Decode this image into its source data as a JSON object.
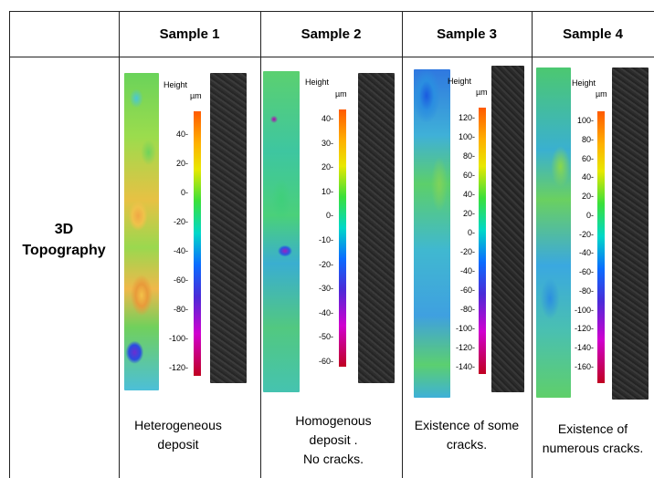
{
  "header": {
    "samples": [
      "Sample 1",
      "Sample 2",
      "Sample 3",
      "Sample 4"
    ]
  },
  "row": {
    "label_line1": "3D",
    "label_line2": "Topography"
  },
  "colorbars": [
    {
      "height_label": "Height",
      "unit": "µm",
      "ticks": [
        "40",
        "20",
        "0",
        "-20",
        "-40",
        "-60",
        "-80",
        "-100",
        "-120"
      ]
    },
    {
      "height_label": "Height",
      "unit": "µm",
      "ticks": [
        "40",
        "30",
        "20",
        "10",
        "0",
        "-10",
        "-20",
        "-30",
        "-40",
        "-50",
        "-60"
      ]
    },
    {
      "height_label": "Height",
      "unit": "µm",
      "ticks": [
        "120",
        "100",
        "80",
        "60",
        "40",
        "20",
        "0",
        "-20",
        "-40",
        "-60",
        "-80",
        "-100",
        "-120",
        "-140"
      ]
    },
    {
      "height_label": "Height",
      "unit": "µm",
      "ticks": [
        "100",
        "80",
        "60",
        "40",
        "20",
        "0",
        "-20",
        "-40",
        "-60",
        "-80",
        "-100",
        "-120",
        "-140",
        "-160"
      ]
    }
  ],
  "captions": [
    {
      "lines": [
        "Heterogeneous",
        "deposit"
      ]
    },
    {
      "lines": [
        "Homogenous",
        "deposit .",
        "No cracks."
      ]
    },
    {
      "lines": [
        "Existence of some",
        "cracks."
      ]
    },
    {
      "lines": [
        "Existence of",
        "numerous cracks."
      ]
    }
  ]
}
